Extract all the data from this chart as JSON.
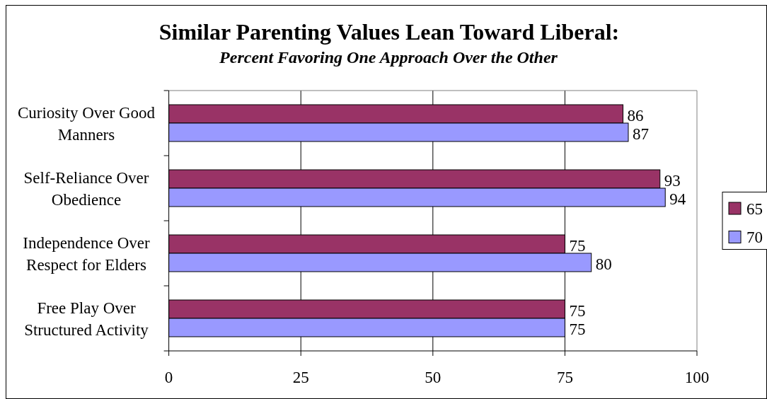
{
  "chart_data": {
    "type": "bar",
    "orientation": "horizontal",
    "title": "Similar Parenting Values Lean Toward Liberal:",
    "subtitle": "Percent Favoring One Approach Over the Other",
    "categories": [
      "Curiosity Over Good Manners",
      "Self-Reliance Over Obedience",
      "Independence Over Respect for Elders",
      "Free Play Over Structured Activity"
    ],
    "series": [
      {
        "name": "65",
        "color": "#993366",
        "values": [
          86,
          93,
          75,
          75
        ]
      },
      {
        "name": "70",
        "color": "#9999ff",
        "values": [
          87,
          94,
          80,
          75
        ]
      }
    ],
    "xlim": [
      0,
      100
    ],
    "xticks": [
      0,
      25,
      50,
      75,
      100
    ],
    "grid": "x",
    "legend": "right",
    "data_labels": true
  }
}
